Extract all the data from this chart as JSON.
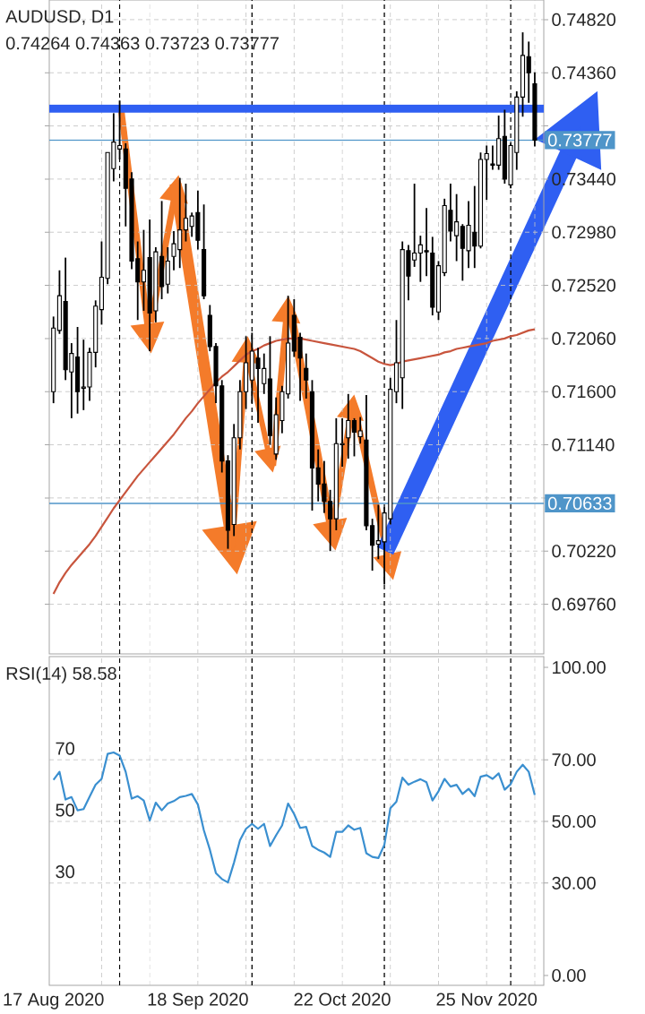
{
  "chart_data": [
    {
      "type": "candlestick",
      "title": "AUDUSD, D1",
      "subtitle": "0.74264 0.74363 0.73723 0.73777",
      "categories": [
        null,
        null,
        null,
        null,
        null,
        null,
        null,
        null,
        null,
        null,
        null,
        null,
        null,
        null,
        null,
        null,
        null,
        null,
        null,
        null,
        null,
        null,
        null,
        null,
        null,
        null,
        null,
        null,
        null,
        null,
        null,
        null,
        null,
        null,
        null,
        null,
        null,
        null,
        null,
        null,
        null,
        null,
        null,
        null,
        null,
        null,
        null,
        null,
        null,
        null,
        null,
        null,
        null,
        null,
        null,
        null,
        null,
        null,
        null,
        null,
        null,
        null,
        null,
        null,
        null,
        null,
        null,
        null,
        null,
        null,
        null,
        null,
        null,
        null,
        null,
        null,
        null,
        null,
        null,
        null,
        null
      ],
      "ohlc": [
        [
          0.716,
          0.7225,
          0.715,
          0.7215
        ],
        [
          0.7213,
          0.7265,
          0.721,
          0.7243
        ],
        [
          0.7238,
          0.7276,
          0.717,
          0.7179
        ],
        [
          0.7177,
          0.7202,
          0.7137,
          0.7193
        ],
        [
          0.719,
          0.7216,
          0.7141,
          0.716
        ],
        [
          0.7163,
          0.7205,
          0.7144,
          0.7164
        ],
        [
          0.7164,
          0.7198,
          0.7152,
          0.7194
        ],
        [
          0.7194,
          0.7239,
          0.7181,
          0.7234
        ],
        [
          0.7231,
          0.729,
          0.7218,
          0.7259
        ],
        [
          0.7258,
          0.7367,
          0.7253,
          0.7367
        ],
        [
          0.7353,
          0.7401,
          0.7342,
          0.7376
        ],
        [
          0.737,
          0.7412,
          0.7361,
          0.7373
        ],
        [
          0.737,
          0.7375,
          0.7303,
          0.7336
        ],
        [
          0.7344,
          0.735,
          0.7266,
          0.7273
        ],
        [
          0.7275,
          0.729,
          0.7222,
          0.7255
        ],
        [
          0.7255,
          0.73,
          0.723,
          0.7265
        ],
        [
          0.7276,
          0.7309,
          0.7195,
          0.7228
        ],
        [
          0.723,
          0.7285,
          0.722,
          0.7281
        ],
        [
          0.7277,
          0.7325,
          0.724,
          0.7251
        ],
        [
          0.7253,
          0.7285,
          0.7245,
          0.7273
        ],
        [
          0.7277,
          0.7299,
          0.7265,
          0.7288
        ],
        [
          0.7283,
          0.7345,
          0.7267,
          0.73
        ],
        [
          0.73,
          0.734,
          0.729,
          0.731
        ],
        [
          0.7303,
          0.7315,
          0.7294,
          0.7312
        ],
        [
          0.7315,
          0.7334,
          0.7283,
          0.7291
        ],
        [
          0.7283,
          0.7322,
          0.724,
          0.7243
        ],
        [
          0.7226,
          0.7235,
          0.7195,
          0.7199
        ],
        [
          0.7199,
          0.7202,
          0.715,
          0.7165
        ],
        [
          0.7165,
          0.717,
          0.709,
          0.71
        ],
        [
          0.71,
          0.7105,
          0.7024,
          0.704
        ],
        [
          0.7045,
          0.7132,
          0.7035,
          0.712
        ],
        [
          0.712,
          0.717,
          0.711,
          0.716
        ],
        [
          0.716,
          0.7208,
          0.7145,
          0.7185
        ],
        [
          0.717,
          0.7211,
          0.715,
          0.7195
        ],
        [
          0.7189,
          0.7198,
          0.7133,
          0.718
        ],
        [
          0.7167,
          0.7193,
          0.7158,
          0.718
        ],
        [
          0.7171,
          0.7208,
          0.7114,
          0.7122
        ],
        [
          0.7106,
          0.7155,
          0.7101,
          0.714
        ],
        [
          0.7135,
          0.7165,
          0.7124,
          0.716
        ],
        [
          0.7158,
          0.7243,
          0.7154,
          0.7202
        ],
        [
          0.7226,
          0.724,
          0.719,
          0.7195
        ],
        [
          0.7207,
          0.7211,
          0.7152,
          0.7189
        ],
        [
          0.718,
          0.7193,
          0.7154,
          0.717
        ],
        [
          0.716,
          0.717,
          0.7057,
          0.7094
        ],
        [
          0.7094,
          0.711,
          0.7065,
          0.708
        ],
        [
          0.708,
          0.71,
          0.7055,
          0.7065
        ],
        [
          0.7065,
          0.7075,
          0.7022,
          0.705
        ],
        [
          0.705,
          0.7137,
          0.704,
          0.7115
        ],
        [
          0.7114,
          0.7137,
          0.7095,
          0.7115
        ],
        [
          0.712,
          0.7158,
          0.7102,
          0.7135
        ],
        [
          0.7135,
          0.7137,
          0.7104,
          0.7125
        ],
        [
          0.7121,
          0.7138,
          0.7115,
          0.7126
        ],
        [
          0.7118,
          0.7157,
          0.704,
          0.7044
        ],
        [
          0.7044,
          0.705,
          0.7005,
          0.7027
        ],
        [
          0.7028,
          0.7062,
          0.7015,
          0.7031
        ],
        [
          0.703,
          0.706,
          0.6993,
          0.7055
        ],
        [
          0.705,
          0.7172,
          0.7045,
          0.7162
        ],
        [
          0.716,
          0.7222,
          0.715,
          0.7185
        ],
        [
          0.7172,
          0.729,
          0.7145,
          0.7283
        ],
        [
          0.7282,
          0.7287,
          0.7239,
          0.726
        ],
        [
          0.7274,
          0.734,
          0.7268,
          0.728
        ],
        [
          0.728,
          0.7295,
          0.7255,
          0.7287
        ],
        [
          0.7282,
          0.7319,
          0.726,
          0.7281
        ],
        [
          0.728,
          0.7294,
          0.7226,
          0.7233
        ],
        [
          0.7229,
          0.7273,
          0.7222,
          0.7269
        ],
        [
          0.7263,
          0.7327,
          0.726,
          0.7321
        ],
        [
          0.7317,
          0.734,
          0.729,
          0.7299
        ],
        [
          0.7295,
          0.7331,
          0.7273,
          0.7307
        ],
        [
          0.7303,
          0.7305,
          0.7256,
          0.7284
        ],
        [
          0.7282,
          0.7325,
          0.7267,
          0.7304
        ],
        [
          0.7298,
          0.7338,
          0.7267,
          0.7286
        ],
        [
          0.7286,
          0.7367,
          0.7284,
          0.7361
        ],
        [
          0.7361,
          0.7373,
          0.7326,
          0.7366
        ],
        [
          0.7357,
          0.7373,
          0.7352,
          0.7356
        ],
        [
          0.7356,
          0.7399,
          0.7352,
          0.7379
        ],
        [
          0.7381,
          0.7404,
          0.734,
          0.7344
        ],
        [
          0.7339,
          0.7375,
          0.7336,
          0.7373
        ],
        [
          0.7367,
          0.742,
          0.7352,
          0.7415
        ],
        [
          0.7415,
          0.7471,
          0.7398,
          0.7451
        ],
        [
          0.745,
          0.7463,
          0.741,
          0.7436
        ],
        [
          0.74264,
          0.74363,
          0.73723,
          0.73777
        ]
      ],
      "series": [
        {
          "type": "line",
          "color": "#c8553d",
          "values": [
            0.6985,
            0.6995,
            0.7003,
            0.701,
            0.7016,
            0.7022,
            0.7028,
            0.7035,
            0.7043,
            0.7051,
            0.7059,
            0.7066,
            0.7073,
            0.708,
            0.7087,
            0.7093,
            0.7099,
            0.7105,
            0.7111,
            0.7117,
            0.7123,
            0.713,
            0.7137,
            0.7143,
            0.715,
            0.7156,
            0.7162,
            0.7168,
            0.7173,
            0.7177,
            0.7182,
            0.7187,
            0.7192,
            0.7195,
            0.7197,
            0.72,
            0.7202,
            0.7204,
            0.7205,
            0.7206,
            0.7206,
            0.7206,
            0.7205,
            0.7204,
            0.7203,
            0.7202,
            0.7201,
            0.72,
            0.7199,
            0.7198,
            0.7197,
            0.7195,
            0.7192,
            0.7189,
            0.7186,
            0.7184,
            0.7183,
            0.7184,
            0.7186,
            0.7187,
            0.7188,
            0.7189,
            0.719,
            0.7191,
            0.7192,
            0.7194,
            0.7195,
            0.7197,
            0.7198,
            0.7199,
            0.72,
            0.7201,
            0.7202,
            0.7204,
            0.7205,
            0.7206,
            0.7208,
            0.7209,
            0.7211,
            0.7213,
            0.7214
          ]
        }
      ],
      "ylim": [
        0.6933,
        0.7499
      ],
      "yticks": [
        {
          "value": 0.6976,
          "label": "0.69760"
        },
        {
          "value": 0.7022,
          "label": "0.70220"
        },
        {
          "value": 0.7068,
          "label": null
        },
        {
          "value": 0.7114,
          "label": "0.71140"
        },
        {
          "value": 0.716,
          "label": "0.71600"
        },
        {
          "value": 0.7206,
          "label": "0.72060"
        },
        {
          "value": 0.7252,
          "label": "0.72520"
        },
        {
          "value": 0.7298,
          "label": "0.72980"
        },
        {
          "value": 0.7344,
          "label": "0.73440"
        },
        {
          "value": 0.739,
          "label": null
        },
        {
          "value": 0.7436,
          "label": "0.74360"
        },
        {
          "value": 0.7482,
          "label": "0.74820"
        }
      ],
      "ref_lines": [
        {
          "axis": "y",
          "value": 0.73777,
          "label": "0.73777",
          "color": "#4f95c9"
        },
        {
          "axis": "y",
          "value": 0.70633,
          "label": "0.70633",
          "color": "#4f95c9"
        },
        {
          "axis": "y",
          "value": 0.7405,
          "color": "#2f5ff2"
        }
      ],
      "grid": true,
      "tick_labels": "y"
    },
    {
      "type": "line",
      "title": "RSI(14) 58.58",
      "categories": [
        "17 Aug 2020",
        null,
        null,
        null,
        null,
        null,
        null,
        null,
        null,
        null,
        null,
        null,
        null,
        null,
        null,
        null,
        null,
        null,
        null,
        null,
        null,
        null,
        null,
        null,
        "18 Sep 2020",
        null,
        null,
        null,
        null,
        null,
        null,
        null,
        null,
        null,
        null,
        null,
        null,
        null,
        null,
        null,
        null,
        null,
        null,
        null,
        null,
        null,
        null,
        null,
        "22 Oct 2020",
        null,
        null,
        null,
        null,
        null,
        null,
        null,
        null,
        null,
        null,
        null,
        null,
        null,
        null,
        null,
        null,
        null,
        null,
        null,
        null,
        null,
        null,
        null,
        "25 Nov 2020",
        null,
        null,
        null,
        null,
        null,
        null,
        null,
        null
      ],
      "color": "#3a8fd0",
      "values": [
        63.5,
        66.1,
        57.1,
        57.9,
        53.6,
        54.0,
        58.0,
        61.9,
        63.8,
        71.9,
        72.4,
        71.4,
        66.1,
        57.4,
        58.2,
        56.8,
        50.3,
        56.1,
        53.6,
        55.8,
        56.6,
        57.9,
        58.3,
        58.9,
        55.5,
        47.1,
        40.8,
        33.2,
        31.3,
        30.2,
        36.6,
        43.9,
        47.6,
        49.2,
        47.6,
        49.2,
        42.0,
        45.5,
        48.7,
        55.8,
        52.4,
        47.9,
        48.2,
        42.0,
        40.8,
        39.9,
        38.5,
        46.6,
        46.6,
        48.7,
        47.3,
        47.9,
        39.7,
        38.5,
        38.1,
        42.4,
        54.3,
        56.4,
        64.2,
        61.9,
        62.9,
        63.7,
        62.7,
        56.8,
        59.8,
        63.8,
        61.3,
        61.9,
        58.9,
        60.6,
        58.2,
        64.5,
        65.0,
        63.8,
        65.6,
        60.3,
        62.1,
        66.1,
        68.4,
        66.1,
        58.58
      ],
      "ylim": [
        -3.2,
        103.5
      ],
      "yticks": [
        30,
        50,
        70
      ],
      "y2lim": [
        -3.2,
        103.5
      ],
      "y2ticks": [
        {
          "value": 0,
          "label": "0.00"
        },
        {
          "value": 30,
          "label": "30.00"
        },
        {
          "value": 50,
          "label": "50.00"
        },
        {
          "value": 70,
          "label": "70.00"
        },
        {
          "value": 100,
          "label": "100.00"
        }
      ],
      "grid": true
    }
  ]
}
